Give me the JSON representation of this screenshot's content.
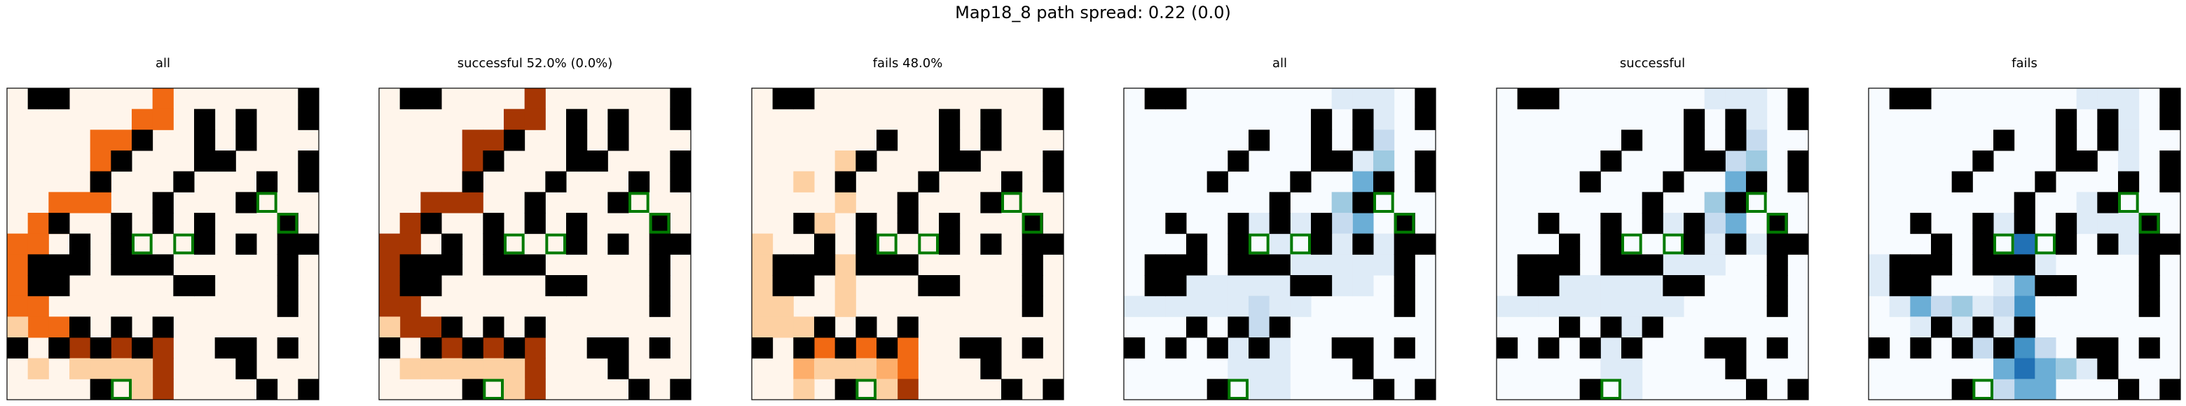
{
  "figure": {
    "title": "Map18_8 path spread: 0.22 (0.0)"
  },
  "colors": {
    "wall": "#000000",
    "target_outline": "#007a00",
    "orange_scale": [
      "#fff5eb",
      "#fdd0a2",
      "#fdae6b",
      "#fd8d3c",
      "#f16913",
      "#d94801",
      "#a63603",
      "#7f0000"
    ],
    "blue_scale": [
      "#f7fbff",
      "#deebf7",
      "#c6dbef",
      "#9ecae1",
      "#6baed6",
      "#4292c6",
      "#2171b5",
      "#08306b"
    ]
  },
  "chart_data": {
    "type": "heatmap",
    "grid_size": [
      15,
      15
    ],
    "walls": [
      [
        0,
        1
      ],
      [
        0,
        2
      ],
      [
        0,
        14
      ],
      [
        1,
        9
      ],
      [
        1,
        11
      ],
      [
        1,
        14
      ],
      [
        2,
        6
      ],
      [
        2,
        9
      ],
      [
        2,
        11
      ],
      [
        3,
        5
      ],
      [
        3,
        9
      ],
      [
        3,
        10
      ],
      [
        3,
        14
      ],
      [
        4,
        4
      ],
      [
        4,
        8
      ],
      [
        4,
        12
      ],
      [
        4,
        14
      ],
      [
        5,
        7
      ],
      [
        5,
        11
      ],
      [
        6,
        2
      ],
      [
        6,
        5
      ],
      [
        6,
        7
      ],
      [
        6,
        9
      ],
      [
        6,
        13
      ],
      [
        7,
        3
      ],
      [
        7,
        5
      ],
      [
        7,
        9
      ],
      [
        7,
        11
      ],
      [
        7,
        13
      ],
      [
        7,
        14
      ],
      [
        8,
        1
      ],
      [
        8,
        2
      ],
      [
        8,
        3
      ],
      [
        8,
        5
      ],
      [
        8,
        6
      ],
      [
        8,
        7
      ],
      [
        8,
        13
      ],
      [
        9,
        1
      ],
      [
        9,
        2
      ],
      [
        9,
        8
      ],
      [
        9,
        9
      ],
      [
        9,
        13
      ],
      [
        10,
        13
      ],
      [
        11,
        3
      ],
      [
        11,
        5
      ],
      [
        11,
        7
      ],
      [
        12,
        0
      ],
      [
        12,
        2
      ],
      [
        12,
        4
      ],
      [
        12,
        6
      ],
      [
        12,
        10
      ],
      [
        12,
        11
      ],
      [
        12,
        13
      ],
      [
        13,
        11
      ],
      [
        14,
        4
      ],
      [
        14,
        12
      ],
      [
        14,
        14
      ]
    ],
    "targets": [
      [
        5,
        12
      ],
      [
        6,
        13
      ],
      [
        7,
        6
      ],
      [
        7,
        8
      ],
      [
        14,
        5
      ]
    ],
    "panels": [
      {
        "title": "all",
        "cmap": "orange",
        "max": 10,
        "cells": [
          [
            0,
            7,
            5
          ],
          [
            1,
            6,
            5
          ],
          [
            1,
            7,
            5
          ],
          [
            2,
            4,
            5
          ],
          [
            2,
            5,
            5
          ],
          [
            3,
            4,
            5
          ],
          [
            4,
            4,
            5
          ],
          [
            5,
            2,
            5
          ],
          [
            5,
            3,
            5
          ],
          [
            5,
            4,
            5
          ],
          [
            6,
            1,
            5
          ],
          [
            6,
            2,
            5
          ],
          [
            7,
            0,
            5
          ],
          [
            7,
            1,
            5
          ],
          [
            8,
            0,
            5
          ],
          [
            9,
            0,
            5
          ],
          [
            10,
            0,
            5
          ],
          [
            10,
            1,
            5
          ],
          [
            11,
            1,
            5
          ],
          [
            11,
            2,
            5
          ],
          [
            12,
            2,
            7
          ],
          [
            12,
            3,
            8
          ],
          [
            12,
            4,
            8
          ],
          [
            12,
            5,
            8
          ],
          [
            12,
            6,
            8
          ],
          [
            12,
            7,
            8
          ],
          [
            13,
            7,
            8
          ],
          [
            14,
            7,
            9
          ],
          [
            13,
            5,
            1
          ],
          [
            13,
            6,
            1
          ],
          [
            14,
            6,
            1
          ],
          [
            13,
            4,
            1
          ],
          [
            13,
            3,
            1
          ],
          [
            11,
            0,
            1
          ],
          [
            13,
            1,
            1
          ]
        ]
      },
      {
        "title": "successful 52.0% (0.0%)",
        "cmap": "orange",
        "max": 10,
        "cells": [
          [
            0,
            7,
            9
          ],
          [
            1,
            6,
            9
          ],
          [
            1,
            7,
            9
          ],
          [
            2,
            4,
            9
          ],
          [
            2,
            5,
            9
          ],
          [
            3,
            4,
            9
          ],
          [
            4,
            4,
            9
          ],
          [
            5,
            2,
            9
          ],
          [
            5,
            3,
            9
          ],
          [
            5,
            4,
            9
          ],
          [
            6,
            1,
            9
          ],
          [
            6,
            2,
            9
          ],
          [
            7,
            0,
            9
          ],
          [
            7,
            1,
            9
          ],
          [
            8,
            0,
            9
          ],
          [
            9,
            0,
            9
          ],
          [
            10,
            0,
            9
          ],
          [
            10,
            1,
            9
          ],
          [
            11,
            1,
            9
          ],
          [
            11,
            2,
            9
          ],
          [
            12,
            2,
            9
          ],
          [
            12,
            3,
            9
          ],
          [
            12,
            4,
            9
          ],
          [
            12,
            5,
            9
          ],
          [
            12,
            6,
            9
          ],
          [
            12,
            7,
            9
          ],
          [
            13,
            7,
            9
          ],
          [
            14,
            7,
            9
          ],
          [
            13,
            1,
            1
          ],
          [
            13,
            2,
            1
          ],
          [
            13,
            3,
            1
          ],
          [
            13,
            4,
            1
          ],
          [
            13,
            5,
            1
          ],
          [
            13,
            6,
            1
          ],
          [
            14,
            6,
            1
          ],
          [
            11,
            0,
            1
          ]
        ]
      },
      {
        "title": "fails 48.0%",
        "cmap": "orange",
        "max": 10,
        "cells": [
          [
            7,
            0,
            1
          ],
          [
            8,
            0,
            1
          ],
          [
            9,
            0,
            1
          ],
          [
            10,
            0,
            1
          ],
          [
            11,
            0,
            1
          ],
          [
            10,
            1,
            1
          ],
          [
            11,
            1,
            2
          ],
          [
            11,
            2,
            2
          ],
          [
            12,
            2,
            3
          ],
          [
            13,
            2,
            3
          ],
          [
            14,
            2,
            1
          ],
          [
            12,
            3,
            6
          ],
          [
            12,
            4,
            6
          ],
          [
            12,
            5,
            6
          ],
          [
            12,
            6,
            6
          ],
          [
            12,
            7,
            6
          ],
          [
            13,
            7,
            6
          ],
          [
            14,
            7,
            9
          ],
          [
            13,
            3,
            1
          ],
          [
            13,
            4,
            1
          ],
          [
            13,
            5,
            1
          ],
          [
            13,
            6,
            3
          ],
          [
            14,
            6,
            2
          ],
          [
            8,
            4,
            1
          ],
          [
            9,
            4,
            1
          ],
          [
            10,
            4,
            1
          ],
          [
            5,
            4,
            1
          ],
          [
            6,
            3,
            1
          ],
          [
            3,
            4,
            1
          ],
          [
            4,
            2,
            1
          ]
        ]
      },
      {
        "title": "all",
        "cmap": "blue",
        "max": 10,
        "cells": [
          [
            0,
            10,
            1
          ],
          [
            0,
            11,
            1
          ],
          [
            0,
            12,
            1
          ],
          [
            1,
            12,
            2
          ],
          [
            2,
            11,
            1
          ],
          [
            2,
            12,
            3
          ],
          [
            3,
            11,
            2
          ],
          [
            3,
            12,
            4
          ],
          [
            4,
            11,
            5
          ],
          [
            5,
            11,
            9
          ],
          [
            5,
            10,
            4
          ],
          [
            6,
            11,
            5
          ],
          [
            6,
            10,
            3
          ],
          [
            6,
            9,
            3
          ],
          [
            6,
            8,
            2
          ],
          [
            6,
            6,
            1
          ],
          [
            7,
            7,
            2
          ],
          [
            7,
            10,
            2
          ],
          [
            7,
            12,
            2
          ],
          [
            8,
            8,
            2
          ],
          [
            8,
            9,
            1
          ],
          [
            8,
            10,
            1
          ],
          [
            8,
            11,
            1
          ],
          [
            8,
            12,
            1
          ],
          [
            9,
            3,
            1
          ],
          [
            9,
            4,
            1
          ],
          [
            9,
            5,
            1
          ],
          [
            9,
            6,
            1
          ],
          [
            9,
            7,
            1
          ],
          [
            9,
            10,
            1
          ],
          [
            9,
            11,
            1
          ],
          [
            10,
            0,
            2
          ],
          [
            10,
            1,
            2
          ],
          [
            10,
            2,
            2
          ],
          [
            10,
            3,
            2
          ],
          [
            10,
            4,
            2
          ],
          [
            10,
            5,
            2
          ],
          [
            10,
            6,
            3
          ],
          [
            10,
            7,
            2
          ],
          [
            10,
            8,
            1
          ],
          [
            11,
            6,
            3
          ],
          [
            12,
            5,
            2
          ],
          [
            12,
            7,
            1
          ],
          [
            13,
            5,
            1
          ],
          [
            13,
            6,
            2
          ],
          [
            13,
            7,
            1
          ],
          [
            14,
            6,
            2
          ],
          [
            14,
            7,
            1
          ]
        ]
      },
      {
        "title": "successful",
        "cmap": "blue",
        "max": 10,
        "cells": [
          [
            0,
            10,
            1
          ],
          [
            0,
            11,
            1
          ],
          [
            0,
            12,
            1
          ],
          [
            1,
            11,
            1
          ],
          [
            1,
            12,
            2
          ],
          [
            2,
            11,
            1
          ],
          [
            2,
            12,
            3
          ],
          [
            3,
            11,
            3
          ],
          [
            3,
            12,
            4
          ],
          [
            4,
            11,
            6
          ],
          [
            5,
            11,
            9
          ],
          [
            5,
            10,
            4
          ],
          [
            6,
            11,
            5
          ],
          [
            6,
            10,
            3
          ],
          [
            6,
            9,
            3
          ],
          [
            6,
            8,
            1
          ],
          [
            7,
            9,
            2
          ],
          [
            7,
            10,
            1
          ],
          [
            7,
            12,
            2
          ],
          [
            8,
            8,
            1
          ],
          [
            8,
            9,
            1
          ],
          [
            8,
            10,
            1
          ],
          [
            9,
            3,
            1
          ],
          [
            9,
            4,
            1
          ],
          [
            9,
            5,
            1
          ],
          [
            9,
            6,
            1
          ],
          [
            9,
            7,
            1
          ],
          [
            10,
            0,
            2
          ],
          [
            10,
            1,
            2
          ],
          [
            10,
            2,
            2
          ],
          [
            10,
            3,
            2
          ],
          [
            10,
            4,
            2
          ],
          [
            10,
            5,
            2
          ],
          [
            10,
            6,
            2
          ],
          [
            10,
            7,
            2
          ],
          [
            10,
            8,
            1
          ],
          [
            11,
            6,
            1
          ],
          [
            12,
            5,
            1
          ],
          [
            13,
            5,
            1
          ],
          [
            13,
            6,
            1
          ],
          [
            14,
            6,
            1
          ]
        ]
      },
      {
        "title": "fails",
        "cmap": "blue",
        "max": 10,
        "cells": [
          [
            0,
            10,
            1
          ],
          [
            0,
            11,
            1
          ],
          [
            0,
            12,
            1
          ],
          [
            1,
            12,
            1
          ],
          [
            2,
            12,
            1
          ],
          [
            3,
            12,
            1
          ],
          [
            5,
            10,
            1
          ],
          [
            6,
            10,
            1
          ],
          [
            6,
            11,
            1
          ],
          [
            6,
            12,
            1
          ],
          [
            6,
            6,
            1
          ],
          [
            7,
            7,
            9
          ],
          [
            8,
            7,
            6
          ],
          [
            9,
            7,
            6
          ],
          [
            10,
            7,
            7
          ],
          [
            11,
            7,
            6
          ],
          [
            12,
            7,
            7
          ],
          [
            13,
            7,
            8
          ],
          [
            14,
            7,
            6
          ],
          [
            14,
            8,
            5
          ],
          [
            14,
            6,
            3
          ],
          [
            10,
            1,
            2
          ],
          [
            10,
            2,
            5
          ],
          [
            10,
            3,
            3
          ],
          [
            10,
            4,
            4
          ],
          [
            10,
            5,
            2
          ],
          [
            10,
            6,
            3
          ],
          [
            11,
            2,
            1
          ],
          [
            11,
            3,
            1
          ],
          [
            11,
            4,
            2
          ],
          [
            11,
            6,
            2
          ],
          [
            12,
            5,
            3
          ],
          [
            12,
            8,
            3
          ],
          [
            13,
            6,
            5
          ],
          [
            13,
            8,
            5
          ],
          [
            13,
            9,
            4
          ],
          [
            13,
            10,
            1
          ],
          [
            8,
            8,
            1
          ],
          [
            9,
            8,
            1
          ],
          [
            9,
            6,
            1
          ],
          [
            7,
            12,
            1
          ],
          [
            8,
            0,
            1
          ],
          [
            9,
            0,
            1
          ]
        ]
      }
    ]
  }
}
